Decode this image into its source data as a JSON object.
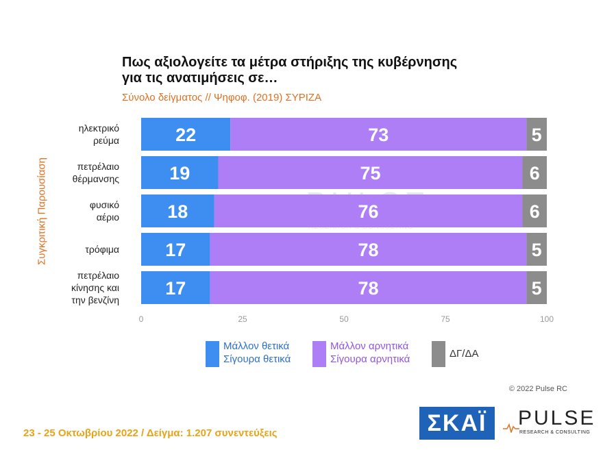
{
  "chart_data": {
    "type": "bar",
    "orientation": "horizontal",
    "stacked": true,
    "title": "Πως αξιολογείτε τα μέτρα στήριξης της κυβέρνησης για τις ανατιμήσεις σε…",
    "title_lines": [
      "Πως αξιολογείτε τα μέτρα στήριξης της κυβέρνησης",
      "για τις ανατιμήσεις σε…"
    ],
    "subtitle": "Σύνολο δείγματος // Ψηφοφ. (2019)  ΣΥΡΙΖΑ",
    "side_label": "Συγκριτική Παρουσίαση",
    "categories": [
      [
        "ηλεκτρικό",
        "ρεύμα"
      ],
      [
        "πετρέλαιο",
        "θέρμανσης"
      ],
      [
        "φυσικό",
        "αέριο"
      ],
      [
        "τρόφιμα"
      ],
      [
        "πετρέλαιο",
        "κίνησης και",
        "την βενζίνη"
      ]
    ],
    "series": [
      {
        "name": "Μάλλον θετικά / Σίγουρα θετικά",
        "legend_lines": [
          "Μάλλον θετικά",
          "Σίγουρα θετικά"
        ],
        "color": "#3d8ef0",
        "values": [
          22,
          19,
          18,
          17,
          17
        ]
      },
      {
        "name": "Μάλλον αρνητικά / Σίγουρα αρνητικά",
        "legend_lines": [
          "Μάλλον αρνητικά",
          "Σίγουρα αρνητικά"
        ],
        "color": "#ad7ef5",
        "values": [
          73,
          75,
          76,
          78,
          78
        ]
      },
      {
        "name": "ΔΓ/ΔΑ",
        "legend_lines": [
          "ΔΓ/ΔΑ"
        ],
        "color": "#8c8c8c",
        "values": [
          5,
          6,
          6,
          5,
          5
        ]
      }
    ],
    "xlim": [
      0,
      100
    ],
    "xticks": [
      0,
      25,
      50,
      75,
      100
    ],
    "legend_position": "bottom",
    "grid": false
  },
  "copyright": "© 2022 Pulse RC",
  "footer": "23 - 25  Οκτωβρίου  2022  /  Δείγμα:  1.207 συνεντεύξεις",
  "logos": {
    "skai": "ΣΚΑΪ",
    "pulse": "PULSE",
    "pulse_sub": "RESEARCH & CONSULTING",
    "watermark": "PULSE",
    "watermark_sub": "RESEARCH & CONSULTING"
  }
}
